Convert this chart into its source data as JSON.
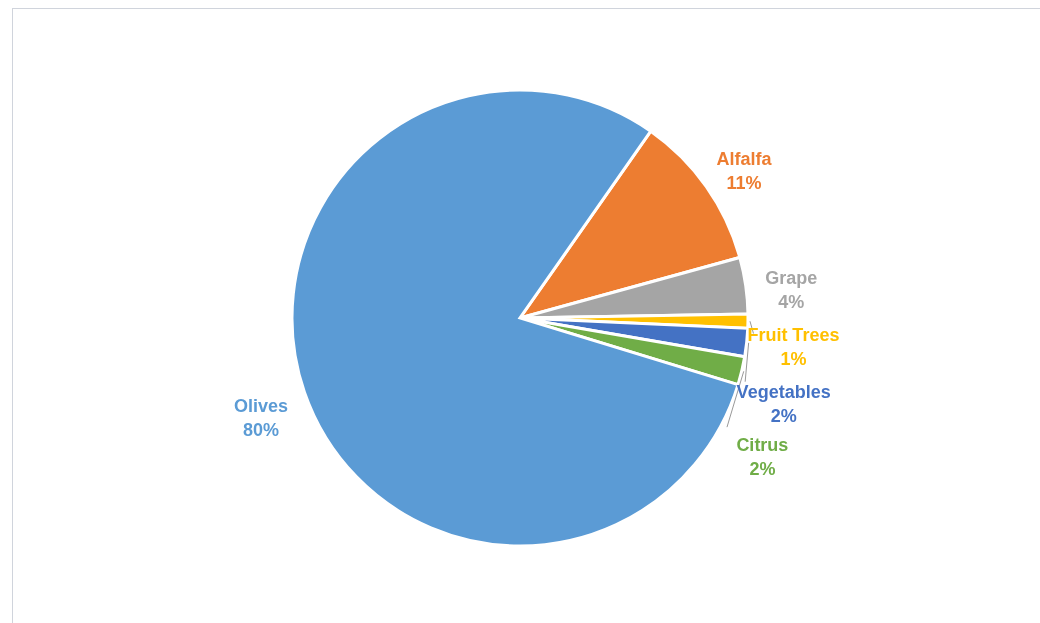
{
  "chart_data": {
    "type": "pie",
    "categories": [
      "Alfalfa",
      "Grape",
      "Fruit Trees",
      "Vegetables",
      "Citrus",
      "Olives"
    ],
    "values": [
      11,
      4,
      1,
      2,
      2,
      80
    ],
    "value_labels": [
      "11%",
      "4%",
      "1%",
      "2%",
      "2%",
      "80%"
    ],
    "colors": [
      "#ed7d31",
      "#a5a5a5",
      "#ffc000",
      "#4472c4",
      "#70ad47",
      "#5b9bd5"
    ]
  }
}
